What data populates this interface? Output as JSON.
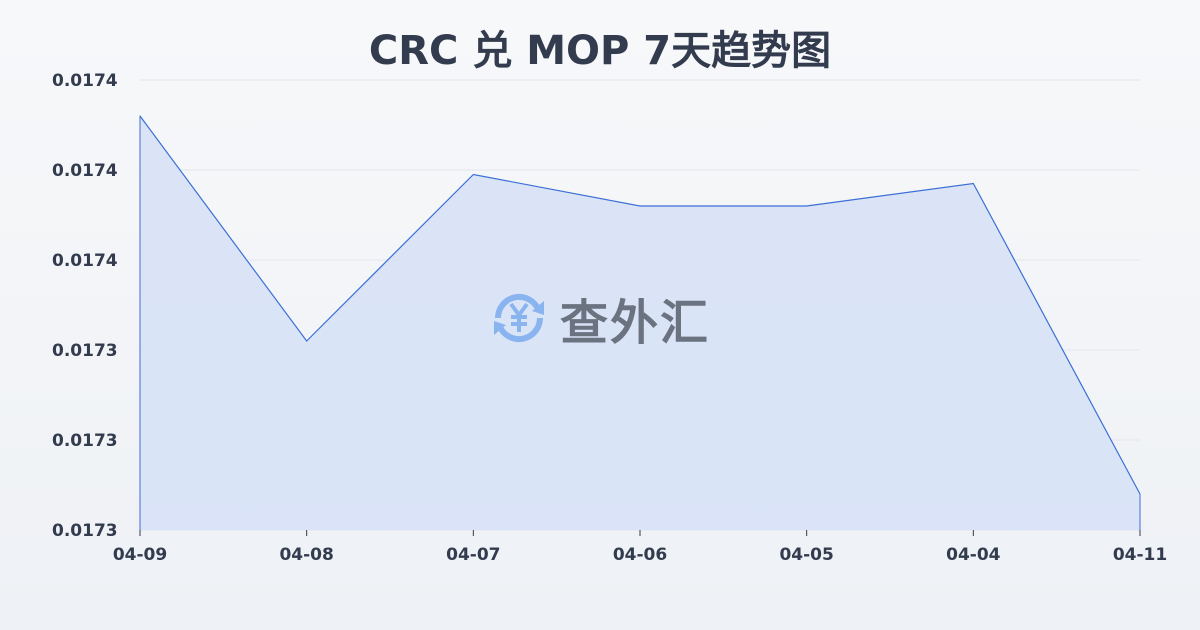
{
  "chart_data": {
    "type": "area",
    "title": "CRC 兑 MOP 7天趋势图",
    "xlabel": "",
    "ylabel": "",
    "categories": [
      "04-09",
      "04-08",
      "04-07",
      "04-06",
      "04-05",
      "04-04",
      "04-11"
    ],
    "values": [
      0.017392,
      0.017342,
      0.017379,
      0.017372,
      0.017372,
      0.017377,
      0.017308
    ],
    "ylim": [
      0.0173,
      0.0174
    ],
    "yticks": [
      0.0174,
      0.01738,
      0.01736,
      0.01734,
      0.01732,
      0.0173
    ],
    "ytick_labels": [
      "0.0174",
      "0.0174",
      "0.0174",
      "0.0173",
      "0.0173",
      "0.0173"
    ],
    "grid": true,
    "colors": {
      "line": "#3b6fd6",
      "fill": "#d6e1f7"
    }
  },
  "watermark": {
    "text": "查外汇",
    "icon": "yen-exchange-icon",
    "icon_color": "#8ab4f0"
  }
}
